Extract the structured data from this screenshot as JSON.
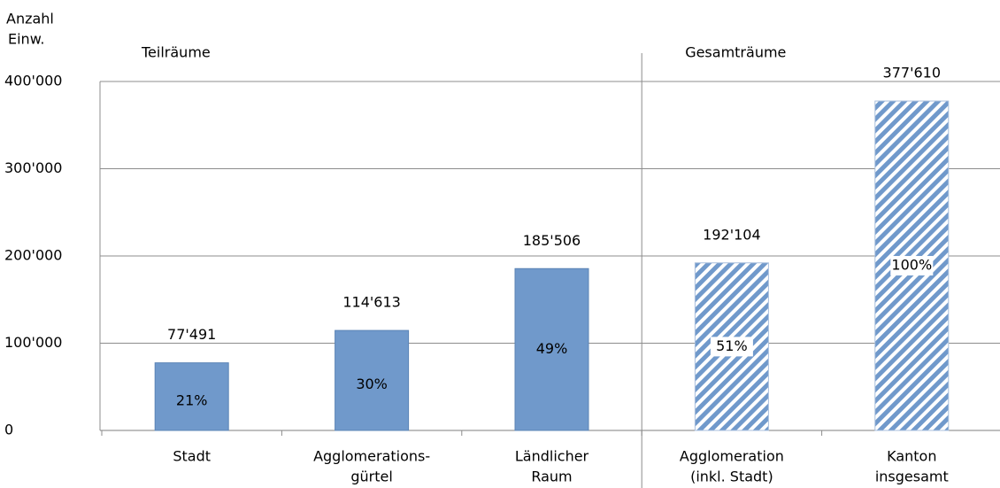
{
  "chart_data": {
    "type": "bar",
    "y_label": [
      "Anzahl",
      "Einw."
    ],
    "groups": [
      {
        "label": "Teilräume",
        "first": 0
      },
      {
        "label": "Gesamträume",
        "first": 3
      }
    ],
    "categories": [
      [
        "Stadt"
      ],
      [
        "Agglomerations-",
        "gürtel"
      ],
      [
        "Ländlicher",
        "Raum"
      ],
      [
        "Agglomeration",
        "(inkl. Stadt)"
      ],
      [
        "Kanton",
        "insgesamt"
      ]
    ],
    "values": [
      77491,
      114613,
      185506,
      192104,
      377610
    ],
    "value_labels": [
      "77'491",
      "114'613",
      "185'506",
      "192'104",
      "377'610"
    ],
    "percent_labels": [
      "21%",
      "30%",
      "49%",
      "51%",
      "100%"
    ],
    "hatched": [
      false,
      false,
      false,
      true,
      true
    ],
    "color": "#7099cb",
    "ylim": [
      0,
      400000
    ],
    "yticks": [
      0,
      {
        "value": 100000,
        "label": "100'000"
      },
      {
        "value": 200000,
        "label": "200'000"
      },
      {
        "value": 300000,
        "label": "300'000"
      },
      {
        "value": 400000,
        "label": "400'000"
      }
    ],
    "grid": true
  }
}
